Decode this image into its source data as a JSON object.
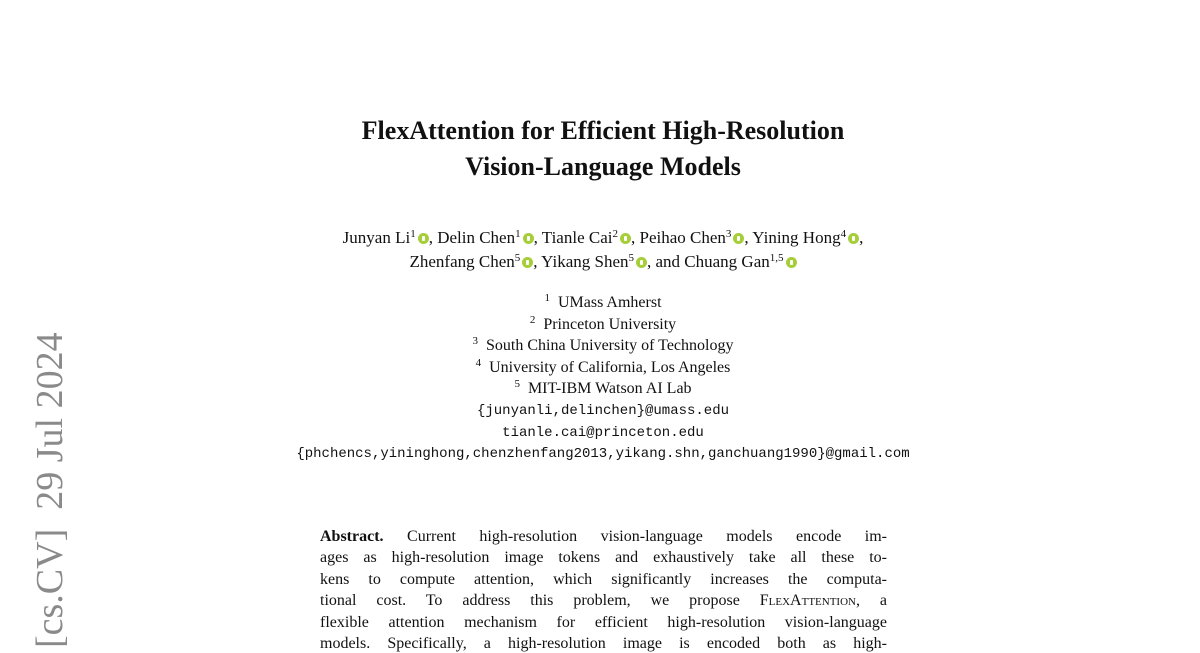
{
  "sidebar": [
    "[cs.CV]",
    "29 Jul 2024"
  ],
  "title": [
    "FlexAttention for Efficient High-Resolution",
    "Vision-Language Models"
  ],
  "authors": [
    [
      {
        "name": "Junyan Li",
        "sup": "1",
        "after": ", "
      },
      {
        "name": "Delin Chen",
        "sup": "1",
        "after": ", "
      },
      {
        "name": "Tianle Cai",
        "sup": "2",
        "after": ", "
      },
      {
        "name": "Peihao Chen",
        "sup": "3",
        "after": ", "
      },
      {
        "name": "Yining Hong",
        "sup": "4",
        "after": ","
      }
    ],
    [
      {
        "name": "Zhenfang Chen",
        "sup": "5",
        "after": ", "
      },
      {
        "name": "Yikang Shen",
        "sup": "5",
        "after": ", and "
      },
      {
        "name": "Chuang Gan",
        "sup": "1,5"
      }
    ]
  ],
  "affiliations": [
    {
      "sup": "1",
      "name": "UMass Amherst"
    },
    {
      "sup": "2",
      "name": "Princeton University"
    },
    {
      "sup": "3",
      "name": "South China University of Technology"
    },
    {
      "sup": "4",
      "name": "University of California, Los Angeles"
    },
    {
      "sup": "5",
      "name": "MIT-IBM Watson AI Lab"
    }
  ],
  "emails": [
    "{junyanli,delinchen}@umass.edu",
    "tianle.cai@princeton.edu",
    "{phchencs,yininghong,chenzhenfang2013,yikang.shn,ganchuang1990}@gmail.com"
  ],
  "abstract": {
    "lines": [
      [
        {
          "text": "Abstract.",
          "style": "bold"
        },
        {
          "text": "Current high-resolution vision-language models encode im-"
        }
      ],
      [
        {
          "text": "ages as high-resolution image tokens and exhaustively take all these to-"
        }
      ],
      [
        {
          "text": "kens to compute attention, which significantly increases the computa-"
        }
      ],
      [
        {
          "text": "tional cost. To address this problem, we propose"
        },
        {
          "text": "FlexAttention",
          "style": "smallcaps"
        },
        {
          "text": ", a"
        }
      ],
      [
        {
          "text": "flexible attention mechanism for efficient high-resolution vision-language"
        }
      ],
      [
        {
          "text": "models. Specifically, a high-resolution image is encoded both as high-"
        }
      ]
    ]
  }
}
